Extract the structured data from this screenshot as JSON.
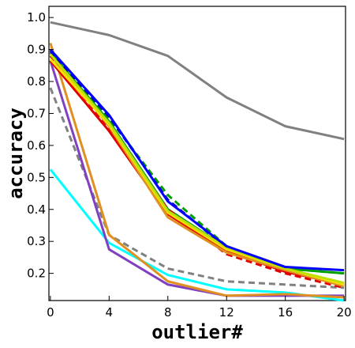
{
  "chart_data": {
    "type": "line",
    "xlabel": "outlier#",
    "ylabel": "accuracy",
    "x": [
      0,
      4,
      8,
      12,
      16,
      20
    ],
    "xticks": [
      "0",
      "4",
      "8",
      "12",
      "16",
      "20"
    ],
    "yticks": [
      "0.2",
      "0.3",
      "0.4",
      "0.5",
      "0.6",
      "0.7",
      "0.8",
      "0.9",
      "1.0"
    ],
    "xlim": [
      -0.1,
      20.1
    ],
    "ylim": [
      0.115,
      1.035
    ],
    "grid": false,
    "legend": "none",
    "series": [
      {
        "color": "#808080",
        "dash": "solid",
        "values": [
          0.985,
          0.945,
          0.88,
          0.75,
          0.66,
          0.62
        ]
      },
      {
        "color": "#00ffff",
        "dash": "solid",
        "values": [
          0.525,
          0.295,
          0.195,
          0.15,
          0.14,
          0.115
        ]
      },
      {
        "color": "#808080",
        "dash": "dashed",
        "values": [
          0.78,
          0.32,
          0.215,
          0.175,
          0.165,
          0.155
        ]
      },
      {
        "color": "#8040c0",
        "dash": "solid",
        "values": [
          0.865,
          0.275,
          0.165,
          0.13,
          0.13,
          0.13
        ]
      },
      {
        "color": "#e09020",
        "dash": "solid",
        "values": [
          0.92,
          0.32,
          0.175,
          0.13,
          0.135,
          0.125
        ]
      },
      {
        "color": "#00a000",
        "dash": "dashed",
        "values": [
          0.895,
          0.685,
          0.445,
          0.285,
          0.215,
          0.2
        ]
      },
      {
        "color": "#00a000",
        "dash": "solid",
        "values": [
          0.89,
          0.675,
          0.4,
          0.28,
          0.215,
          0.2
        ]
      },
      {
        "color": "#0000c0",
        "dash": "dashed",
        "values": [
          0.895,
          0.69,
          0.43,
          0.28,
          0.21,
          0.165
        ]
      },
      {
        "color": "#e00000",
        "dash": "dashed",
        "values": [
          0.88,
          0.655,
          0.4,
          0.26,
          0.2,
          0.155
        ]
      },
      {
        "color": "#e00000",
        "dash": "solid",
        "values": [
          0.865,
          0.645,
          0.385,
          0.27,
          0.205,
          0.165
        ]
      },
      {
        "color": "#e09020",
        "dash": "solid",
        "values": [
          0.885,
          0.66,
          0.375,
          0.265,
          0.21,
          0.16
        ]
      },
      {
        "color": "#ffe000",
        "dash": "solid",
        "values": [
          0.87,
          0.665,
          0.39,
          0.275,
          0.215,
          0.165
        ]
      },
      {
        "color": "#c0e000",
        "dash": "solid",
        "values": [
          0.885,
          0.67,
          0.395,
          0.28,
          0.215,
          0.17
        ]
      },
      {
        "color": "#0000ff",
        "dash": "solid",
        "values": [
          0.9,
          0.695,
          0.425,
          0.285,
          0.22,
          0.21
        ]
      }
    ]
  }
}
